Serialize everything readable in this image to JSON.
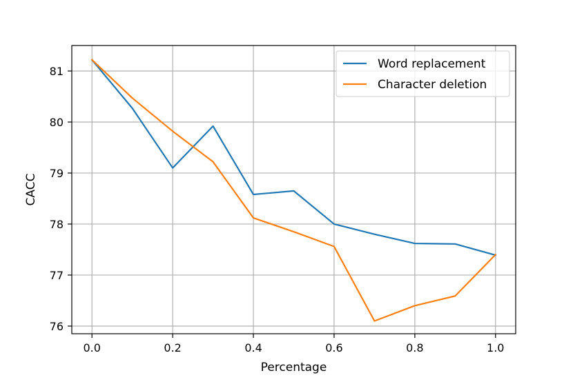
{
  "chart_data": {
    "type": "line",
    "x": [
      0.0,
      0.1,
      0.2,
      0.3,
      0.4,
      0.5,
      0.6,
      0.7,
      0.8,
      0.9,
      1.0
    ],
    "series": [
      {
        "name": "Word replacement",
        "color": "#1f77b4",
        "values": [
          81.22,
          80.27,
          79.1,
          79.92,
          78.58,
          78.65,
          78.0,
          77.8,
          77.62,
          77.61,
          77.39
        ]
      },
      {
        "name": "Character deletion",
        "color": "#ff7f0e",
        "values": [
          81.22,
          80.47,
          79.82,
          79.22,
          78.12,
          77.85,
          77.56,
          76.1,
          76.4,
          76.59,
          77.4
        ]
      }
    ],
    "xlabel": "Percentage",
    "ylabel": "CACC",
    "xlim": [
      -0.05,
      1.05
    ],
    "ylim": [
      75.85,
      81.5
    ],
    "xticks": [
      0.0,
      0.2,
      0.4,
      0.6,
      0.8,
      1.0
    ],
    "xtick_labels": [
      "0.0",
      "0.2",
      "0.4",
      "0.6",
      "0.8",
      "1.0"
    ],
    "yticks": [
      76,
      77,
      78,
      79,
      80,
      81
    ],
    "ytick_labels": [
      "76",
      "77",
      "78",
      "79",
      "80",
      "81"
    ],
    "grid": true,
    "legend_position": "top-right"
  }
}
